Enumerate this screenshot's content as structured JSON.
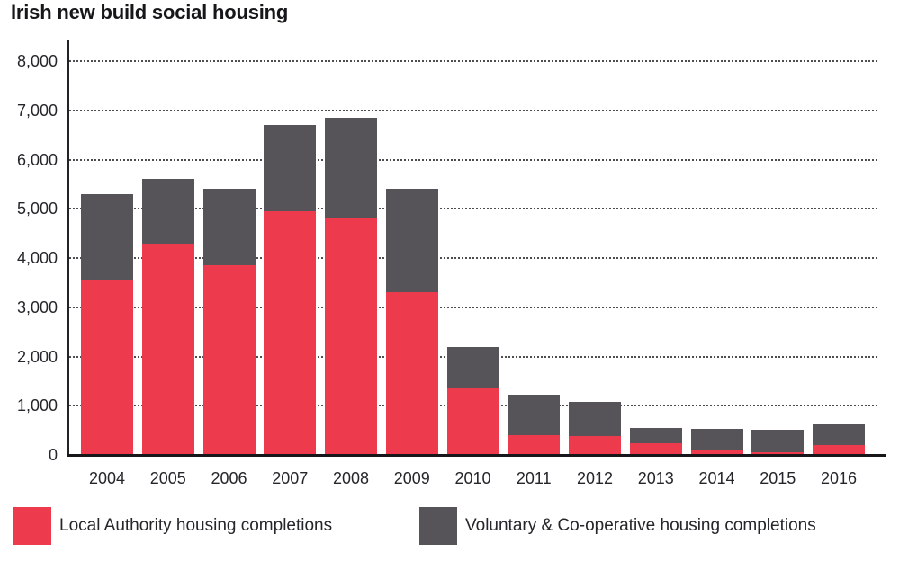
{
  "chart_data": {
    "type": "bar",
    "stacked": true,
    "title": "Irish new build social housing",
    "xlabel": "",
    "ylabel": "",
    "ylim": [
      0,
      8000
    ],
    "grid": "dotted-horizontal",
    "legend_position": "bottom",
    "categories": [
      "2004",
      "2005",
      "2006",
      "2007",
      "2008",
      "2009",
      "2010",
      "2011",
      "2012",
      "2013",
      "2014",
      "2015",
      "2016"
    ],
    "series": [
      {
        "name": "Local Authority housing completions",
        "color": "#ee3a4d",
        "values": [
          3550,
          4300,
          3850,
          4950,
          4800,
          3300,
          1360,
          410,
          390,
          230,
          90,
          60,
          200
        ]
      },
      {
        "name": "Voluntary & Co-operative housing completions",
        "color": "#565359",
        "values": [
          1750,
          1300,
          1550,
          1750,
          2050,
          2100,
          840,
          810,
          680,
          320,
          440,
          450,
          420
        ]
      }
    ],
    "totals": [
      5300,
      5600,
      5400,
      6700,
      6850,
      5400,
      2200,
      1220,
      1070,
      550,
      530,
      510,
      620
    ],
    "y_ticks": [
      {
        "value": 0,
        "label": "0"
      },
      {
        "value": 1000,
        "label": "1,000"
      },
      {
        "value": 2000,
        "label": "2,000"
      },
      {
        "value": 3000,
        "label": "3,000"
      },
      {
        "value": 4000,
        "label": "4,000"
      },
      {
        "value": 5000,
        "label": "5,000"
      },
      {
        "value": 6000,
        "label": "6,000"
      },
      {
        "value": 7000,
        "label": "7,000"
      },
      {
        "value": 8000,
        "label": "8,000"
      }
    ],
    "colors": {
      "title_text": "#17171b",
      "axis_text": "#26252b",
      "gridline": "#4d4d4d",
      "axis_line": "#17171b"
    }
  }
}
